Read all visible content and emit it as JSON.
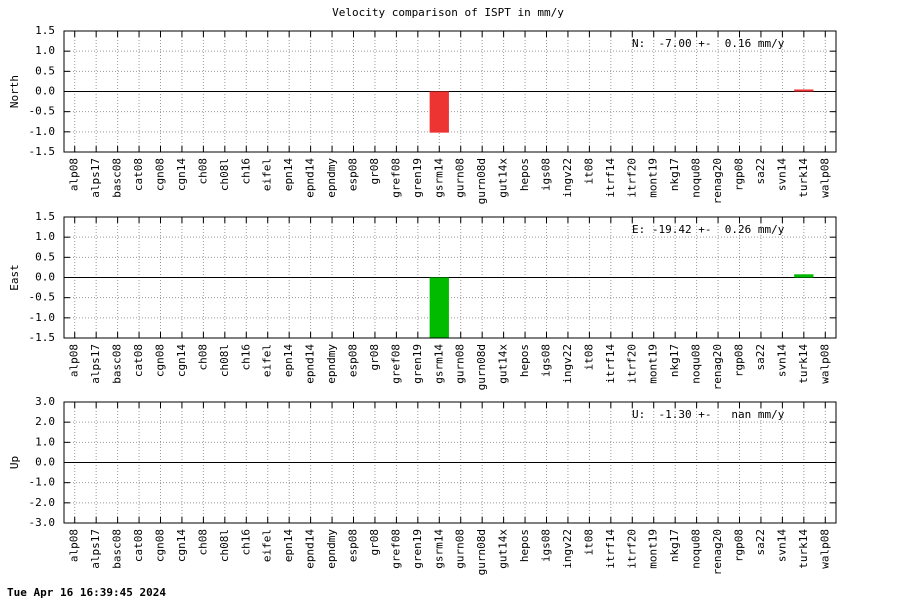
{
  "title": "Velocity comparison of ISPT in mm/y",
  "footer": "Tue Apr 16 16:39:45 2024",
  "chart_data": [
    {
      "type": "bar",
      "ylabel": "North",
      "annotation": "N:  -7.00 +-  0.16 mm/y",
      "color": "#ee3333",
      "grid": true,
      "categories": [
        "alp08",
        "alps17",
        "basc08",
        "cat08",
        "cgn08",
        "cgn14",
        "ch08",
        "ch08l",
        "ch16",
        "eifel",
        "epn14",
        "epnd14",
        "epndmy",
        "esp08",
        "gr08",
        "gref08",
        "gren19",
        "gsrm14",
        "gurn08",
        "gurn08d",
        "gut14x",
        "hepos",
        "igs08",
        "ingv22",
        "it08",
        "itrf14",
        "itrf20",
        "mont19",
        "nkg17",
        "noqu08",
        "renag20",
        "rgp08",
        "sa22",
        "svn14",
        "turk14",
        "walp08"
      ],
      "values": [
        null,
        null,
        null,
        null,
        null,
        null,
        null,
        null,
        null,
        null,
        null,
        null,
        null,
        null,
        null,
        null,
        null,
        -1.02,
        null,
        null,
        null,
        null,
        null,
        null,
        null,
        null,
        null,
        null,
        null,
        null,
        null,
        null,
        null,
        null,
        0.05,
        null
      ],
      "ylim": [
        -1.5,
        1.5
      ],
      "yticks": [
        {
          "value": -1.5,
          "label": "-1.5"
        },
        {
          "value": -1,
          "label": "-1.0"
        },
        {
          "value": -0.5,
          "label": "-0.5"
        },
        {
          "value": 0,
          "label": "0.0"
        },
        {
          "value": 0.5,
          "label": "0.5"
        },
        {
          "value": 1,
          "label": "1.0"
        },
        {
          "value": 1.5,
          "label": "1.5"
        }
      ]
    },
    {
      "type": "bar",
      "ylabel": "East",
      "annotation": "E: -19.42 +-  0.26 mm/y",
      "color": "#00bb00",
      "grid": true,
      "categories": [
        "alp08",
        "alps17",
        "basc08",
        "cat08",
        "cgn08",
        "cgn14",
        "ch08",
        "ch08l",
        "ch16",
        "eifel",
        "epn14",
        "epnd14",
        "epndmy",
        "esp08",
        "gr08",
        "gref08",
        "gren19",
        "gsrm14",
        "gurn08",
        "gurn08d",
        "gut14x",
        "hepos",
        "igs08",
        "ingv22",
        "it08",
        "itrf14",
        "itrf20",
        "mont19",
        "nkg17",
        "noqu08",
        "renag20",
        "rgp08",
        "sa22",
        "svn14",
        "turk14",
        "walp08"
      ],
      "values": [
        null,
        null,
        null,
        null,
        null,
        null,
        null,
        null,
        null,
        null,
        null,
        null,
        null,
        null,
        null,
        null,
        null,
        -1.5,
        null,
        null,
        null,
        null,
        null,
        null,
        null,
        null,
        null,
        null,
        null,
        null,
        null,
        null,
        null,
        null,
        0.08,
        null
      ],
      "ylim": [
        -1.5,
        1.5
      ],
      "yticks": [
        {
          "value": -1.5,
          "label": "-1.5"
        },
        {
          "value": -1,
          "label": "-1.0"
        },
        {
          "value": -0.5,
          "label": "-0.5"
        },
        {
          "value": 0,
          "label": "0.0"
        },
        {
          "value": 0.5,
          "label": "0.5"
        },
        {
          "value": 1,
          "label": "1.0"
        },
        {
          "value": 1.5,
          "label": "1.5"
        }
      ]
    },
    {
      "type": "bar",
      "ylabel": "Up",
      "annotation": "U:  -1.30 +-   nan mm/y",
      "color": "#3333ee",
      "grid": true,
      "categories": [
        "alp08",
        "alps17",
        "basc08",
        "cat08",
        "cgn08",
        "cgn14",
        "ch08",
        "ch08l",
        "ch16",
        "eifel",
        "epn14",
        "epnd14",
        "epndmy",
        "esp08",
        "gr08",
        "gref08",
        "gren19",
        "gsrm14",
        "gurn08",
        "gurn08d",
        "gut14x",
        "hepos",
        "igs08",
        "ingv22",
        "it08",
        "itrf14",
        "itrf20",
        "mont19",
        "nkg17",
        "noqu08",
        "renag20",
        "rgp08",
        "sa22",
        "svn14",
        "turk14",
        "walp08"
      ],
      "values": [
        null,
        null,
        null,
        null,
        null,
        null,
        null,
        null,
        null,
        null,
        null,
        null,
        null,
        null,
        null,
        null,
        null,
        null,
        null,
        null,
        null,
        null,
        null,
        null,
        null,
        null,
        null,
        null,
        null,
        null,
        null,
        null,
        null,
        null,
        null,
        null
      ],
      "ylim": [
        -3,
        3
      ],
      "yticks": [
        {
          "value": -3,
          "label": "-3.0"
        },
        {
          "value": -2,
          "label": "-2.0"
        },
        {
          "value": -1,
          "label": "-1.0"
        },
        {
          "value": 0,
          "label": "0.0"
        },
        {
          "value": 1,
          "label": "1.0"
        },
        {
          "value": 2,
          "label": "2.0"
        },
        {
          "value": 3,
          "label": "3.0"
        }
      ]
    }
  ]
}
